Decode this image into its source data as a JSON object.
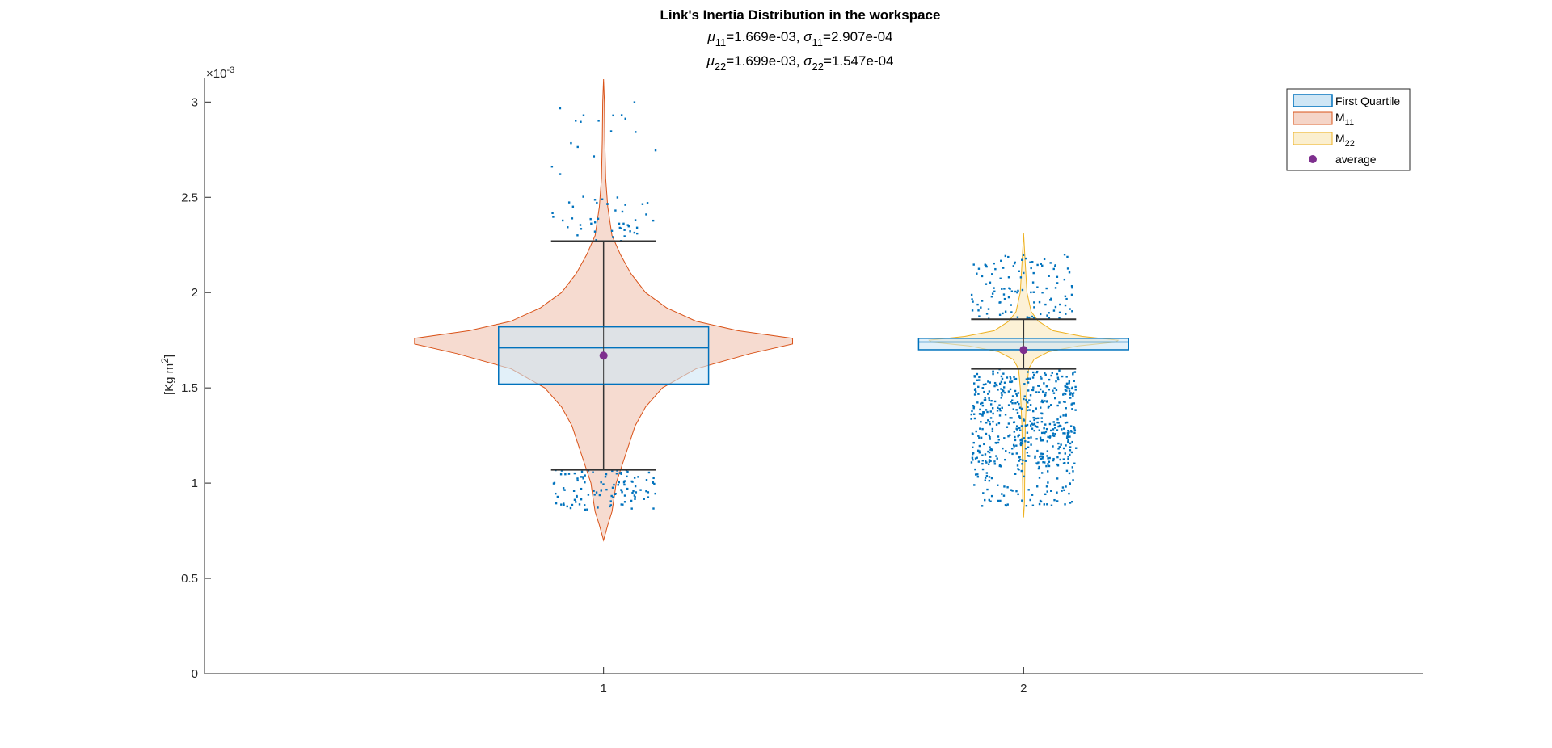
{
  "chart_data": {
    "type": "violin-box",
    "title": "Link's Inertia Distribution in the workspace",
    "subtitle_line1": {
      "mu": "μ",
      "mu_sub": "11",
      "mu_val": "=1.669e-03, ",
      "sigma": "σ",
      "sigma_sub": "11",
      "sigma_val": "=2.907e-04"
    },
    "subtitle_line2": {
      "mu": "μ",
      "mu_sub": "22",
      "mu_val": "=1.699e-03, ",
      "sigma": "σ",
      "sigma_sub": "22",
      "sigma_val": "=1.547e-04"
    },
    "ylabel": {
      "main": "[Kg m",
      "sup": "2",
      "end": "]"
    },
    "y_exponent": {
      "base": "×10",
      "exp": "-3"
    },
    "ylim": [
      0,
      0.00312
    ],
    "xlim": [
      0.05,
      2.95
    ],
    "y_ticks": [
      0,
      0.0005,
      0.001,
      0.0015,
      0.002,
      0.0025,
      0.003
    ],
    "y_tick_labels": [
      "0",
      "0.5",
      "1",
      "1.5",
      "2",
      "2.5",
      "3"
    ],
    "x_ticks": [
      1,
      2
    ],
    "x_tick_labels": [
      "1",
      "2"
    ],
    "colors": {
      "box_edge": "#0072BD",
      "box_fill": "#cfe6f5",
      "violin1_edge": "#D95319",
      "violin1_fill": "#f5d5c8",
      "violin2_edge": "#EDB120",
      "violin2_fill": "#fbefcf",
      "points": "#0072BD",
      "mean": "#7E2F8E",
      "whisker": "#333333"
    },
    "series": [
      {
        "name": "M",
        "sub": "11",
        "x": 1,
        "q1": 0.00152,
        "median": 0.00171,
        "q3": 0.00182,
        "whisker_low": 0.00107,
        "whisker_high": 0.00227,
        "mean": 0.001669,
        "violin_profile": [
          [
            0.0007,
            0.0
          ],
          [
            0.00078,
            0.01
          ],
          [
            0.00085,
            0.02
          ],
          [
            0.00092,
            0.025
          ],
          [
            0.001,
            0.03
          ],
          [
            0.0011,
            0.045
          ],
          [
            0.0012,
            0.06
          ],
          [
            0.0013,
            0.075
          ],
          [
            0.0014,
            0.1
          ],
          [
            0.0015,
            0.14
          ],
          [
            0.0016,
            0.22
          ],
          [
            0.00168,
            0.35
          ],
          [
            0.00173,
            0.45
          ],
          [
            0.00176,
            0.45
          ],
          [
            0.0018,
            0.32
          ],
          [
            0.00185,
            0.22
          ],
          [
            0.00192,
            0.15
          ],
          [
            0.002,
            0.1
          ],
          [
            0.0021,
            0.065
          ],
          [
            0.0022,
            0.04
          ],
          [
            0.0023,
            0.02
          ],
          [
            0.00245,
            0.01
          ],
          [
            0.0026,
            0.005
          ],
          [
            0.0028,
            0.003
          ],
          [
            0.003,
            0.002
          ],
          [
            0.00312,
            0.0
          ]
        ]
      },
      {
        "name": "M",
        "sub": "22",
        "x": 2,
        "q1": 0.0017,
        "median": 0.00174,
        "q3": 0.00176,
        "whisker_low": 0.0016,
        "whisker_high": 0.00186,
        "mean": 0.001699,
        "violin_profile": [
          [
            0.00082,
            0.0
          ],
          [
            0.0009,
            0.002
          ],
          [
            0.0011,
            0.003
          ],
          [
            0.0013,
            0.004
          ],
          [
            0.0015,
            0.008
          ],
          [
            0.0016,
            0.012
          ],
          [
            0.00165,
            0.025
          ],
          [
            0.00169,
            0.06
          ],
          [
            0.00172,
            0.13
          ],
          [
            0.00174,
            0.22
          ],
          [
            0.00175,
            0.225
          ],
          [
            0.00177,
            0.14
          ],
          [
            0.0018,
            0.07
          ],
          [
            0.00185,
            0.035
          ],
          [
            0.0019,
            0.018
          ],
          [
            0.002,
            0.008
          ],
          [
            0.00215,
            0.004
          ],
          [
            0.00231,
            0.0
          ]
        ]
      }
    ],
    "legend": {
      "placement": "top-right",
      "entries": [
        {
          "label": "First Quartile",
          "sub": ""
        },
        {
          "label": "M",
          "sub": "11"
        },
        {
          "label": "M",
          "sub": "22"
        },
        {
          "label": "average",
          "sub": ""
        }
      ]
    }
  }
}
